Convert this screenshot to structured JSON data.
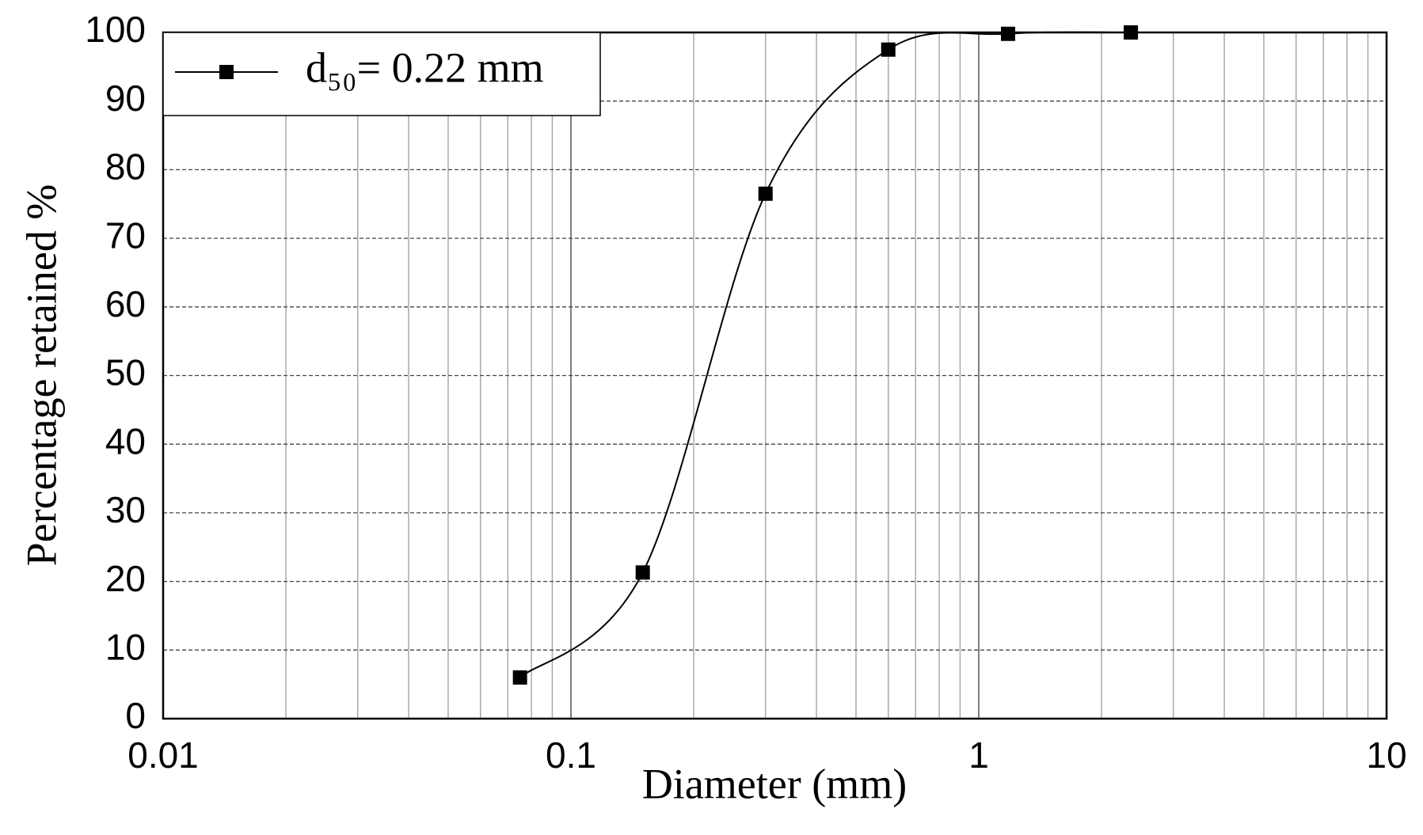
{
  "chart_data": {
    "type": "line",
    "x_label": "Diameter (mm)",
    "y_label": "Percentage retained %",
    "x": [
      0.075,
      0.15,
      0.3,
      0.6,
      1.18,
      2.36
    ],
    "series": [
      {
        "name": "d₅₀= 0.22 mm",
        "color": "#000000",
        "values": [
          6,
          21.3,
          76.5,
          97.5,
          99.8,
          100
        ]
      }
    ],
    "xlim": [
      0.01,
      10
    ],
    "xticks": [
      0.01,
      0.1,
      1,
      10
    ],
    "x_log": true,
    "xminorticks": [
      0.02,
      0.03,
      0.04,
      0.05,
      0.06,
      0.07,
      0.08,
      0.09,
      0.2,
      0.3,
      0.4,
      0.5,
      0.6,
      0.7,
      0.8,
      0.9,
      2,
      3,
      4,
      5,
      6,
      7,
      8,
      9
    ],
    "ylim": [
      0,
      100
    ],
    "yticks": [
      0,
      10,
      20,
      30,
      40,
      50,
      60,
      70,
      80,
      90,
      100
    ],
    "grid": true,
    "legend": "upper-left"
  }
}
